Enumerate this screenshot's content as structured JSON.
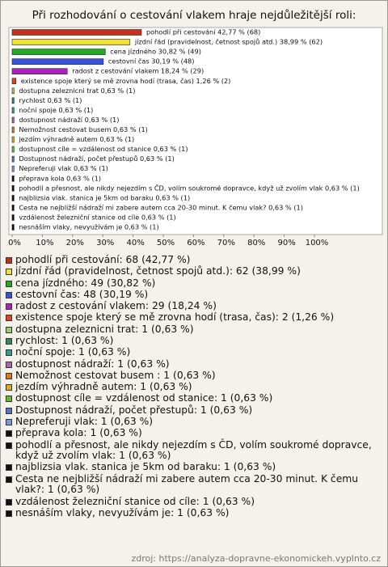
{
  "chart_data": {
    "type": "hbar",
    "title": "Při rozhodování o cestování vlakem hraje nejdůležitější roli:",
    "categories": [
      "pohodlí při cestování",
      "jízdní řád (pravidelnost, četnost spojů atd.)",
      "cena jízdného",
      "cestovní čas",
      "radost z cestování vlakem",
      "existence spoje který se mě zrovna hodí (trasa, čas)",
      "dostupna zeleznicni trat",
      "rychlost",
      "noční spoje",
      "dostupnost nádraží",
      "Nemožnost cestovat busem",
      "jezdím výhradně autem",
      "dostupnost cíle = vzdálenost od stanice",
      "Dostupnost nádraží, počet přestupů",
      "Nepreferuji vlak",
      "přeprava kola",
      "pohodlí a přesnost, ale nikdy nejezdím s ČD, volím soukromé dopravce, když už zvolím vlak",
      "najblizsia vlak. stanica je 5km od baraku",
      "Cesta ne nejbližší nádraží mi zabere autem cca 20-30 minut. K čemu vlak?",
      "vzdálenost železniční stanice od cíle",
      "nesnáším vlaky, nevyužívám je"
    ],
    "values": [
      42.77,
      38.99,
      30.82,
      30.19,
      18.24,
      1.26,
      0.63,
      0.63,
      0.63,
      0.63,
      0.63,
      0.63,
      0.63,
      0.63,
      0.63,
      0.63,
      0.63,
      0.63,
      0.63,
      0.63,
      0.63
    ],
    "value_labels": [
      "pohodlí při cestování 42,77 % (68)",
      "jízdní řád (pravidelnost, četnost spojů atd.) 38,99 % (62)",
      "cena jízdného 30,82 % (49)",
      "cestovní čas 30,19 % (48)",
      "radost z cestování vlakem 18,24 % (29)",
      "existence spoje který se mě zrovna hodí (trasa, čas) 1,26 % (2)",
      "dostupna zeleznicni trat 0,63 % (1)",
      "rychlost 0,63 % (1)",
      "noční spoje 0,63 % (1)",
      "dostupnost nádraží 0,63 % (1)",
      "Nemožnost cestovat busem  0,63 % (1)",
      "jezdím výhradně autem 0,63 % (1)",
      "dostupnost cíle = vzdálenost od stanice 0,63 % (1)",
      "Dostupnost nádraží, počet přestupů 0,63 % (1)",
      "Nepreferuji vlak 0,63 % (1)",
      "přeprava kola 0,63 % (1)",
      "pohodlí a přesnost, ale nikdy nejezdím s ČD, volím soukromé dopravce, když už zvolím vlak 0,63 % (1)",
      "najblizsia vlak. stanica je 5km od baraku 0,63 % (1)",
      "Cesta ne nejbližší nádraží mi zabere autem cca 20-30 minut. K čemu vlak? 0,63 % (1)",
      "vzdálenost železniční stanice od cíle 0,63 % (1)",
      "nesnáším vlaky, nevyužívám je 0,63 % (1)"
    ],
    "legend": [
      "pohodlí při cestování: 68 (42,77 %)",
      "jízdní řád (pravidelnost, četnost spojů atd.): 62 (38,99 %)",
      "cena jízdného: 49 (30,82 %)",
      "cestovní čas: 48 (30,19 %)",
      "radost z cestování vlakem: 29 (18,24 %)",
      "existence spoje který se mě zrovna hodí (trasa, čas): 2 (1,26 %)",
      "dostupna zeleznicni trat: 1 (0,63 %)",
      "rychlost: 1 (0,63 %)",
      "noční spoje: 1 (0,63 %)",
      "dostupnost nádraží: 1 (0,63 %)",
      "Nemožnost cestovat busem : 1 (0,63 %)",
      "jezdím výhradně autem: 1 (0,63 %)",
      "dostupnost cíle = vzdálenost od stanice: 1 (0,63 %)",
      "Dostupnost nádraží, počet přestupů: 1 (0,63 %)",
      "Nepreferuji vlak: 1 (0,63 %)",
      "přeprava kola: 1 (0,63 %)",
      "pohodlí a přesnost, ale nikdy nejezdím s ČD, volím soukromé dopravce, když už zvolím vlak: 1 (0,63 %)",
      "najblizsia vlak. stanica je 5km od baraku: 1 (0,63 %)",
      "Cesta ne nejbližší nádraží mi zabere autem cca 20-30 minut. K čemu vlak?: 1 (0,63 %)",
      "vzdálenost železniční stanice od cíle: 1 (0,63 %)",
      "nesnáším vlaky, nevyužívám je: 1 (0,63 %)"
    ],
    "colors": [
      "#c8301e",
      "#f2e232",
      "#22aa22",
      "#3355dd",
      "#aa22bb",
      "#dd4422",
      "#99cc66",
      "#338866",
      "#339999",
      "#aa66aa",
      "#dd7722",
      "#ddaa22",
      "#66bb33",
      "#5577bb",
      "#7799dd",
      "#111111",
      "#111111",
      "#111111",
      "#111111",
      "#111111",
      "#111111"
    ],
    "xlim": [
      0,
      100
    ],
    "xticks": [
      {
        "value": 0,
        "label": "0%"
      },
      {
        "value": 10,
        "label": "10%"
      },
      {
        "value": 20,
        "label": "20%"
      },
      {
        "value": 30,
        "label": "30%"
      },
      {
        "value": 40,
        "label": "40%"
      },
      {
        "value": 50,
        "label": "50%"
      },
      {
        "value": 60,
        "label": "60%"
      },
      {
        "value": 70,
        "label": "70%"
      },
      {
        "value": 80,
        "label": "80%"
      },
      {
        "value": 90,
        "label": "90%"
      },
      {
        "value": 100,
        "label": "100%"
      }
    ],
    "source": "zdroj: https://analyza-dopravne-ekonomickeh.vyplnto.cz"
  }
}
